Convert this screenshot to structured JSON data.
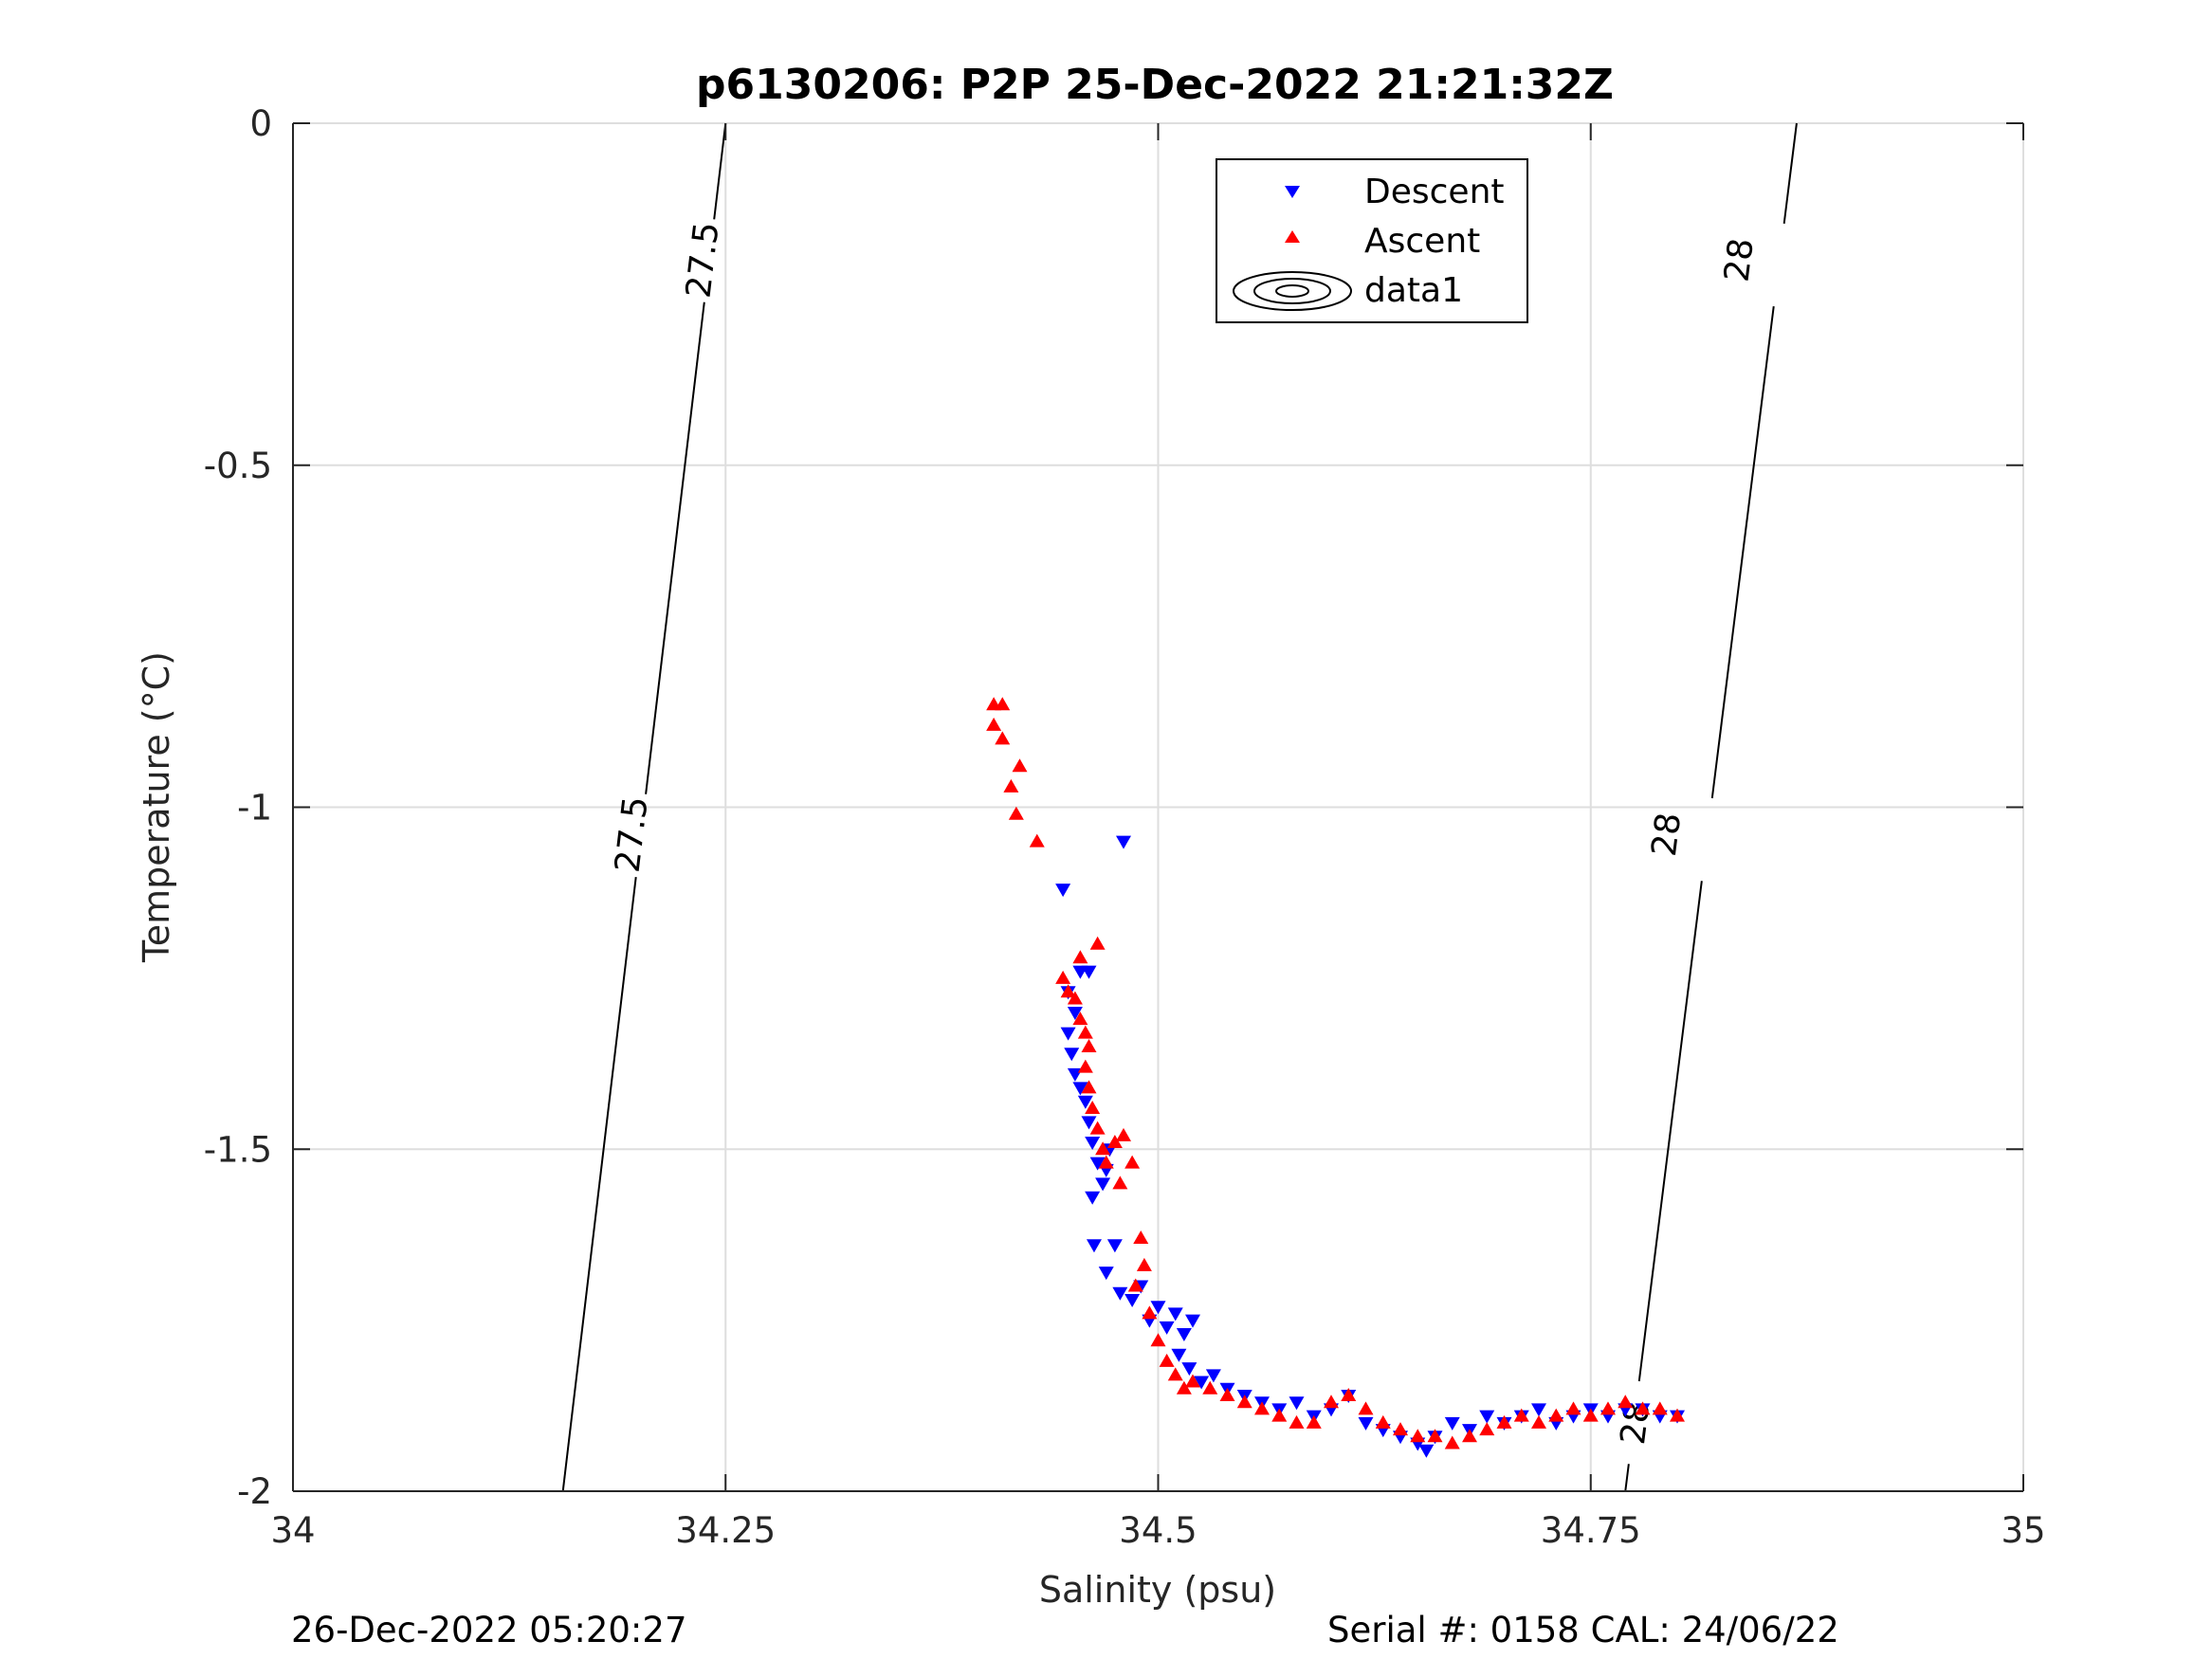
{
  "chart_data": {
    "type": "scatter",
    "title": "p6130206: P2P 25-Dec-2022 21:21:32Z",
    "xlabel": "Salinity (psu)",
    "ylabel": "Temperature (°C)",
    "xlim": [
      34,
      35
    ],
    "ylim": [
      -2,
      0
    ],
    "xticks": [
      34,
      34.25,
      34.5,
      34.75,
      35
    ],
    "yticks": [
      -2,
      -1.5,
      -1,
      -0.5,
      0
    ],
    "xtick_labels": [
      "34",
      "34.25",
      "34.5",
      "34.75",
      "35"
    ],
    "ytick_labels": [
      "-2",
      "-1.5",
      "-1",
      "-0.5",
      "0"
    ],
    "grid": true,
    "legend_position": "top-center",
    "legend": [
      "Descent",
      "Ascent",
      "data1"
    ],
    "series": [
      {
        "name": "Descent",
        "marker": "triangle-down",
        "color": "#0000ff",
        "points": [
          [
            34.48,
            -1.05
          ],
          [
            34.445,
            -1.12
          ],
          [
            34.46,
            -1.24
          ],
          [
            34.455,
            -1.24
          ],
          [
            34.448,
            -1.27
          ],
          [
            34.452,
            -1.3
          ],
          [
            34.448,
            -1.33
          ],
          [
            34.45,
            -1.36
          ],
          [
            34.452,
            -1.39
          ],
          [
            34.455,
            -1.41
          ],
          [
            34.458,
            -1.43
          ],
          [
            34.46,
            -1.46
          ],
          [
            34.462,
            -1.49
          ],
          [
            34.465,
            -1.52
          ],
          [
            34.468,
            -1.55
          ],
          [
            34.462,
            -1.57
          ],
          [
            34.47,
            -1.53
          ],
          [
            34.472,
            -1.5
          ],
          [
            34.463,
            -1.64
          ],
          [
            34.475,
            -1.64
          ],
          [
            34.47,
            -1.68
          ],
          [
            34.478,
            -1.71
          ],
          [
            34.49,
            -1.7
          ],
          [
            34.485,
            -1.72
          ],
          [
            34.5,
            -1.73
          ],
          [
            34.495,
            -1.75
          ],
          [
            34.505,
            -1.76
          ],
          [
            34.51,
            -1.74
          ],
          [
            34.515,
            -1.77
          ],
          [
            34.52,
            -1.75
          ],
          [
            34.512,
            -1.8
          ],
          [
            34.518,
            -1.82
          ],
          [
            34.525,
            -1.84
          ],
          [
            34.532,
            -1.83
          ],
          [
            34.54,
            -1.85
          ],
          [
            34.55,
            -1.86
          ],
          [
            34.56,
            -1.87
          ],
          [
            34.57,
            -1.88
          ],
          [
            34.58,
            -1.87
          ],
          [
            34.59,
            -1.89
          ],
          [
            34.6,
            -1.88
          ],
          [
            34.61,
            -1.86
          ],
          [
            34.62,
            -1.9
          ],
          [
            34.63,
            -1.91
          ],
          [
            34.64,
            -1.92
          ],
          [
            34.65,
            -1.93
          ],
          [
            34.655,
            -1.94
          ],
          [
            34.66,
            -1.92
          ],
          [
            34.67,
            -1.9
          ],
          [
            34.68,
            -1.91
          ],
          [
            34.69,
            -1.89
          ],
          [
            34.7,
            -1.9
          ],
          [
            34.71,
            -1.89
          ],
          [
            34.72,
            -1.88
          ],
          [
            34.73,
            -1.9
          ],
          [
            34.74,
            -1.89
          ],
          [
            34.75,
            -1.88
          ],
          [
            34.76,
            -1.89
          ],
          [
            34.77,
            -1.88
          ],
          [
            34.78,
            -1.88
          ],
          [
            34.79,
            -1.89
          ],
          [
            34.8,
            -1.89
          ]
        ]
      },
      {
        "name": "Ascent",
        "marker": "triangle-up",
        "color": "#ff0000",
        "points": [
          [
            34.405,
            -0.85
          ],
          [
            34.41,
            -0.85
          ],
          [
            34.405,
            -0.88
          ],
          [
            34.41,
            -0.9
          ],
          [
            34.415,
            -0.97
          ],
          [
            34.42,
            -0.94
          ],
          [
            34.418,
            -1.01
          ],
          [
            34.43,
            -1.05
          ],
          [
            34.465,
            -1.2
          ],
          [
            34.455,
            -1.22
          ],
          [
            34.445,
            -1.25
          ],
          [
            34.448,
            -1.27
          ],
          [
            34.452,
            -1.28
          ],
          [
            34.455,
            -1.31
          ],
          [
            34.458,
            -1.33
          ],
          [
            34.46,
            -1.35
          ],
          [
            34.458,
            -1.38
          ],
          [
            34.46,
            -1.41
          ],
          [
            34.462,
            -1.44
          ],
          [
            34.465,
            -1.47
          ],
          [
            34.468,
            -1.5
          ],
          [
            34.47,
            -1.52
          ],
          [
            34.475,
            -1.49
          ],
          [
            34.48,
            -1.48
          ],
          [
            34.485,
            -1.52
          ],
          [
            34.478,
            -1.55
          ],
          [
            34.49,
            -1.63
          ],
          [
            34.492,
            -1.67
          ],
          [
            34.487,
            -1.7
          ],
          [
            34.495,
            -1.74
          ],
          [
            34.5,
            -1.78
          ],
          [
            34.505,
            -1.81
          ],
          [
            34.51,
            -1.83
          ],
          [
            34.515,
            -1.85
          ],
          [
            34.52,
            -1.84
          ],
          [
            34.53,
            -1.85
          ],
          [
            34.54,
            -1.86
          ],
          [
            34.55,
            -1.87
          ],
          [
            34.56,
            -1.88
          ],
          [
            34.57,
            -1.89
          ],
          [
            34.58,
            -1.9
          ],
          [
            34.59,
            -1.9
          ],
          [
            34.6,
            -1.87
          ],
          [
            34.61,
            -1.86
          ],
          [
            34.62,
            -1.88
          ],
          [
            34.63,
            -1.9
          ],
          [
            34.64,
            -1.91
          ],
          [
            34.65,
            -1.92
          ],
          [
            34.66,
            -1.92
          ],
          [
            34.67,
            -1.93
          ],
          [
            34.68,
            -1.92
          ],
          [
            34.69,
            -1.91
          ],
          [
            34.7,
            -1.9
          ],
          [
            34.71,
            -1.89
          ],
          [
            34.72,
            -1.9
          ],
          [
            34.73,
            -1.89
          ],
          [
            34.74,
            -1.88
          ],
          [
            34.75,
            -1.89
          ],
          [
            34.76,
            -1.88
          ],
          [
            34.77,
            -1.87
          ],
          [
            34.78,
            -1.88
          ],
          [
            34.79,
            -1.88
          ],
          [
            34.8,
            -1.89
          ]
        ]
      }
    ],
    "isopycnals": [
      {
        "name": "27.5",
        "line": [
          [
            34.156,
            -2
          ],
          [
            34.25,
            0
          ]
        ],
        "labels": [
          {
            "text": "27.5",
            "x": 34.196,
            "y": -1.04
          },
          {
            "text": "27.5",
            "x": 34.237,
            "y": -0.2
          }
        ]
      },
      {
        "name": "28",
        "line": [
          [
            34.77,
            -2
          ],
          [
            34.869,
            0
          ]
        ],
        "labels": [
          {
            "text": "28",
            "x": 34.794,
            "y": -1.04
          },
          {
            "text": "28",
            "x": 34.836,
            "y": -0.2
          },
          {
            "text": "28",
            "x": 34.776,
            "y": -1.9
          }
        ]
      }
    ]
  },
  "footer": {
    "left_timestamp": "26-Dec-2022 05:20:27",
    "right_info": "Serial #: 0158  CAL: 24/06/22"
  }
}
